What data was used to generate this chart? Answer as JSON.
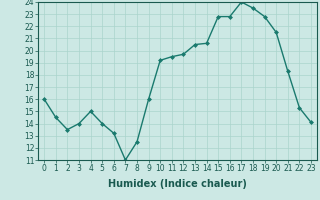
{
  "x": [
    0,
    1,
    2,
    3,
    4,
    5,
    6,
    7,
    8,
    9,
    10,
    11,
    12,
    13,
    14,
    15,
    16,
    17,
    18,
    19,
    20,
    21,
    22,
    23
  ],
  "y": [
    16,
    14.5,
    13.5,
    14,
    15,
    14,
    13.2,
    11,
    12.5,
    16,
    19.2,
    19.5,
    19.7,
    20.5,
    20.6,
    22.8,
    22.8,
    24,
    23.5,
    22.8,
    21.5,
    18.3,
    15.3,
    14.1
  ],
  "line_color": "#1a7a6e",
  "marker": "D",
  "markersize": 2.0,
  "linewidth": 1.0,
  "bg_color": "#cce8e4",
  "grid_color": "#aad4cc",
  "xlabel": "Humidex (Indice chaleur)",
  "xlabel_fontsize": 7,
  "tick_color": "#1a5a50",
  "ylim": [
    11,
    24
  ],
  "yticks": [
    11,
    12,
    13,
    14,
    15,
    16,
    17,
    18,
    19,
    20,
    21,
    22,
    23,
    24
  ],
  "xticks": [
    0,
    1,
    2,
    3,
    4,
    5,
    6,
    7,
    8,
    9,
    10,
    11,
    12,
    13,
    14,
    15,
    16,
    17,
    18,
    19,
    20,
    21,
    22,
    23
  ],
  "tick_fontsize": 5.5
}
